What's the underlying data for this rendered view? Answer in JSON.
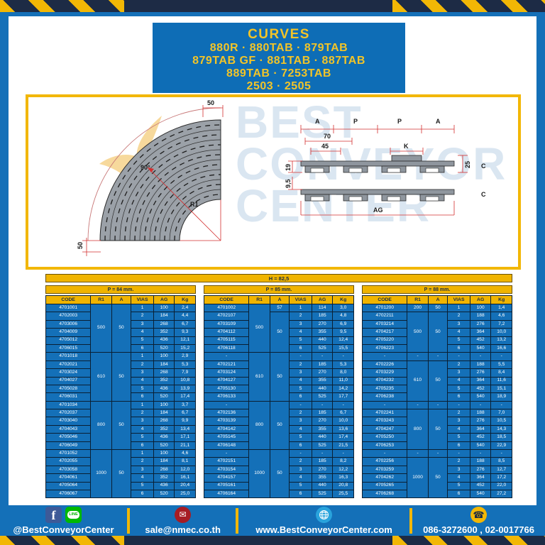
{
  "header": {
    "title": "CURVES",
    "lines": [
      "880R · 880TAB · 879TAB",
      "879TAB GF · 881TAB · 887TAB",
      "889TAB · 7253TAB",
      "2503 · 2505"
    ]
  },
  "diagram": {
    "watermark": [
      "BEST",
      "CONVEYOR",
      "CENTER"
    ],
    "curve": {
      "angle": "90°",
      "dim_top": "50",
      "dim_left": "50",
      "radius_label": "R1"
    },
    "section": {
      "dims_top": [
        "A",
        "P",
        "P",
        "A"
      ],
      "dim_70": "70",
      "dim_45": "45",
      "dim_k": "K",
      "dim_19": "19",
      "dim_95": "9,5",
      "dim_25": "25",
      "c_top": "C",
      "c_bottom": "C",
      "dim_ag": "AG"
    }
  },
  "banner": {
    "h_label": "H = 82,5"
  },
  "tables": [
    {
      "title": "P = 84 mm.",
      "columns": [
        "CODE",
        "R1",
        "A",
        "VIAS",
        "AG",
        "Kg"
      ],
      "rows": [
        [
          "4701001",
          [
            "500",
            6
          ],
          [
            "50",
            6
          ],
          "1",
          "100",
          "2,4"
        ],
        [
          "4702003",
          "2",
          "184",
          "4,4"
        ],
        [
          "4703006",
          "3",
          "268",
          "6,7"
        ],
        [
          "4704009",
          "4",
          "352",
          "9,3"
        ],
        [
          "4705012",
          "5",
          "436",
          "12,1"
        ],
        [
          "4706015",
          "6",
          "520",
          "15,2"
        ],
        [
          "4701018",
          [
            "610",
            6
          ],
          [
            "50",
            6
          ],
          "1",
          "100",
          "2,9"
        ],
        [
          "4702021",
          "2",
          "184",
          "5,3"
        ],
        [
          "4703024",
          "3",
          "268",
          "7,9"
        ],
        [
          "4704027",
          "4",
          "352",
          "10,8"
        ],
        [
          "4705028",
          "5",
          "436",
          "13,9"
        ],
        [
          "4706031",
          "6",
          "520",
          "17,4"
        ],
        [
          "4701034",
          [
            "800",
            6
          ],
          [
            "50",
            6
          ],
          "1",
          "100",
          "3,7"
        ],
        [
          "4702037",
          "2",
          "184",
          "6,7"
        ],
        [
          "4703040",
          "3",
          "268",
          "9,9"
        ],
        [
          "4704043",
          "4",
          "352",
          "13,4"
        ],
        [
          "4705046",
          "5",
          "436",
          "17,1"
        ],
        [
          "4706049",
          "6",
          "520",
          "21,1"
        ],
        [
          "4701052",
          [
            "1000",
            6
          ],
          [
            "50",
            6
          ],
          "1",
          "100",
          "4,6"
        ],
        [
          "4702055",
          "2",
          "184",
          "8,1"
        ],
        [
          "4703058",
          "3",
          "268",
          "12,0"
        ],
        [
          "4704061",
          "4",
          "352",
          "16,1"
        ],
        [
          "4705064",
          "5",
          "436",
          "20,4"
        ],
        [
          "4706067",
          "6",
          "520",
          "25,0"
        ]
      ]
    },
    {
      "title": "P = 85 mm.",
      "columns": [
        "CODE",
        "R1",
        "A",
        "VIAS",
        "AG",
        "Kg"
      ],
      "rows": [
        [
          "4701002",
          [
            "500",
            6
          ],
          "57",
          "1",
          "114",
          "3,0"
        ],
        [
          "4702107",
          [
            "50",
            5
          ],
          "2",
          "185",
          "4,8"
        ],
        [
          "4703109",
          "3",
          "270",
          "6,9"
        ],
        [
          "4704112",
          "4",
          "355",
          "9,5"
        ],
        [
          "4705115",
          "5",
          "440",
          "12,4"
        ],
        [
          "4706118",
          "6",
          "525",
          "15,5"
        ],
        [
          "-",
          [
            "610",
            6
          ],
          [
            "50",
            6
          ],
          "-",
          "-",
          "-"
        ],
        [
          "4702121",
          "2",
          "185",
          "5,3"
        ],
        [
          "4703124",
          "3",
          "270",
          "8,0"
        ],
        [
          "4704127",
          "4",
          "355",
          "11,0"
        ],
        [
          "4705130",
          "5",
          "440",
          "14,2"
        ],
        [
          "4706133",
          "6",
          "525",
          "17,7"
        ],
        [
          "-",
          [
            "800",
            6
          ],
          [
            "50",
            6
          ],
          "-",
          "-",
          "-"
        ],
        [
          "4702136",
          "2",
          "185",
          "6,7"
        ],
        [
          "4703139",
          "3",
          "270",
          "10,0"
        ],
        [
          "4704142",
          "4",
          "355",
          "13,6"
        ],
        [
          "4705145",
          "5",
          "440",
          "17,4"
        ],
        [
          "4706148",
          "6",
          "525",
          "21,5"
        ],
        [
          "-",
          [
            "1000",
            6
          ],
          [
            "50",
            6
          ],
          "-",
          "-",
          "-"
        ],
        [
          "4702151",
          "2",
          "185",
          "8,2"
        ],
        [
          "4703154",
          "3",
          "270",
          "12,2"
        ],
        [
          "4704157",
          "4",
          "355",
          "16,3"
        ],
        [
          "4705161",
          "5",
          "440",
          "20,8"
        ],
        [
          "4706164",
          "6",
          "525",
          "25,5"
        ]
      ]
    },
    {
      "title": "P = 88 mm.",
      "columns": [
        "CODE",
        "R1",
        "A",
        "VIAS",
        "AG",
        "Kg"
      ],
      "rows": [
        [
          "4701200",
          "200",
          "50",
          "1",
          "100",
          "1,4"
        ],
        [
          "4702211",
          [
            "500",
            5
          ],
          [
            "50",
            5
          ],
          "2",
          "188",
          "4,6"
        ],
        [
          "4703214",
          "3",
          "276",
          "7,2"
        ],
        [
          "4704217",
          "4",
          "364",
          "10,0"
        ],
        [
          "4705220",
          "5",
          "452",
          "13,2"
        ],
        [
          "4706223",
          "6",
          "540",
          "16,6"
        ],
        [
          "-",
          "-",
          "-",
          "-",
          "-",
          "-"
        ],
        [
          "4702226",
          [
            "610",
            5
          ],
          [
            "50",
            5
          ],
          "2",
          "188",
          "5,5"
        ],
        [
          "4703229",
          "3",
          "276",
          "8,4"
        ],
        [
          "4704232",
          "4",
          "364",
          "11,6"
        ],
        [
          "4705235",
          "5",
          "452",
          "15,1"
        ],
        [
          "4706238",
          "6",
          "540",
          "18,9"
        ],
        [
          "-",
          "-",
          "-",
          "-",
          "-",
          "-"
        ],
        [
          "4702241",
          [
            "800",
            5
          ],
          [
            "50",
            5
          ],
          "2",
          "188",
          "7,0"
        ],
        [
          "4703243",
          "3",
          "276",
          "10,5"
        ],
        [
          "4704247",
          "4",
          "364",
          "14,3"
        ],
        [
          "4705250",
          "5",
          "452",
          "18,5"
        ],
        [
          "4706253",
          "6",
          "540",
          "22,9"
        ],
        [
          "-",
          "-",
          "-",
          "-",
          "-",
          "-"
        ],
        [
          "4702256",
          [
            "1000",
            5
          ],
          [
            "50",
            5
          ],
          "2",
          "188",
          "8,5"
        ],
        [
          "4703259",
          "3",
          "276",
          "12,7"
        ],
        [
          "4704262",
          "4",
          "364",
          "17,2"
        ],
        [
          "4705265",
          "5",
          "452",
          "22,0"
        ],
        [
          "4706268",
          "6",
          "540",
          "27,2"
        ]
      ]
    }
  ],
  "footer": {
    "social_handle": "@BestConveyorCenter",
    "line_label": "LINE",
    "facebook_letter": "f",
    "email": "sale@nmec.co.th",
    "website": "www.BestConveyorCenter.com",
    "phones": "086-3272600 , 02-0017766",
    "mail_glyph": "✉",
    "phone_glyph": "☎"
  },
  "colors": {
    "frame_blue": "#1470b8",
    "accent_yellow": "#f2b705",
    "navy": "#1d2b45",
    "table_header_yellow": "#f0b400",
    "dim_red": "#d32f2f"
  }
}
